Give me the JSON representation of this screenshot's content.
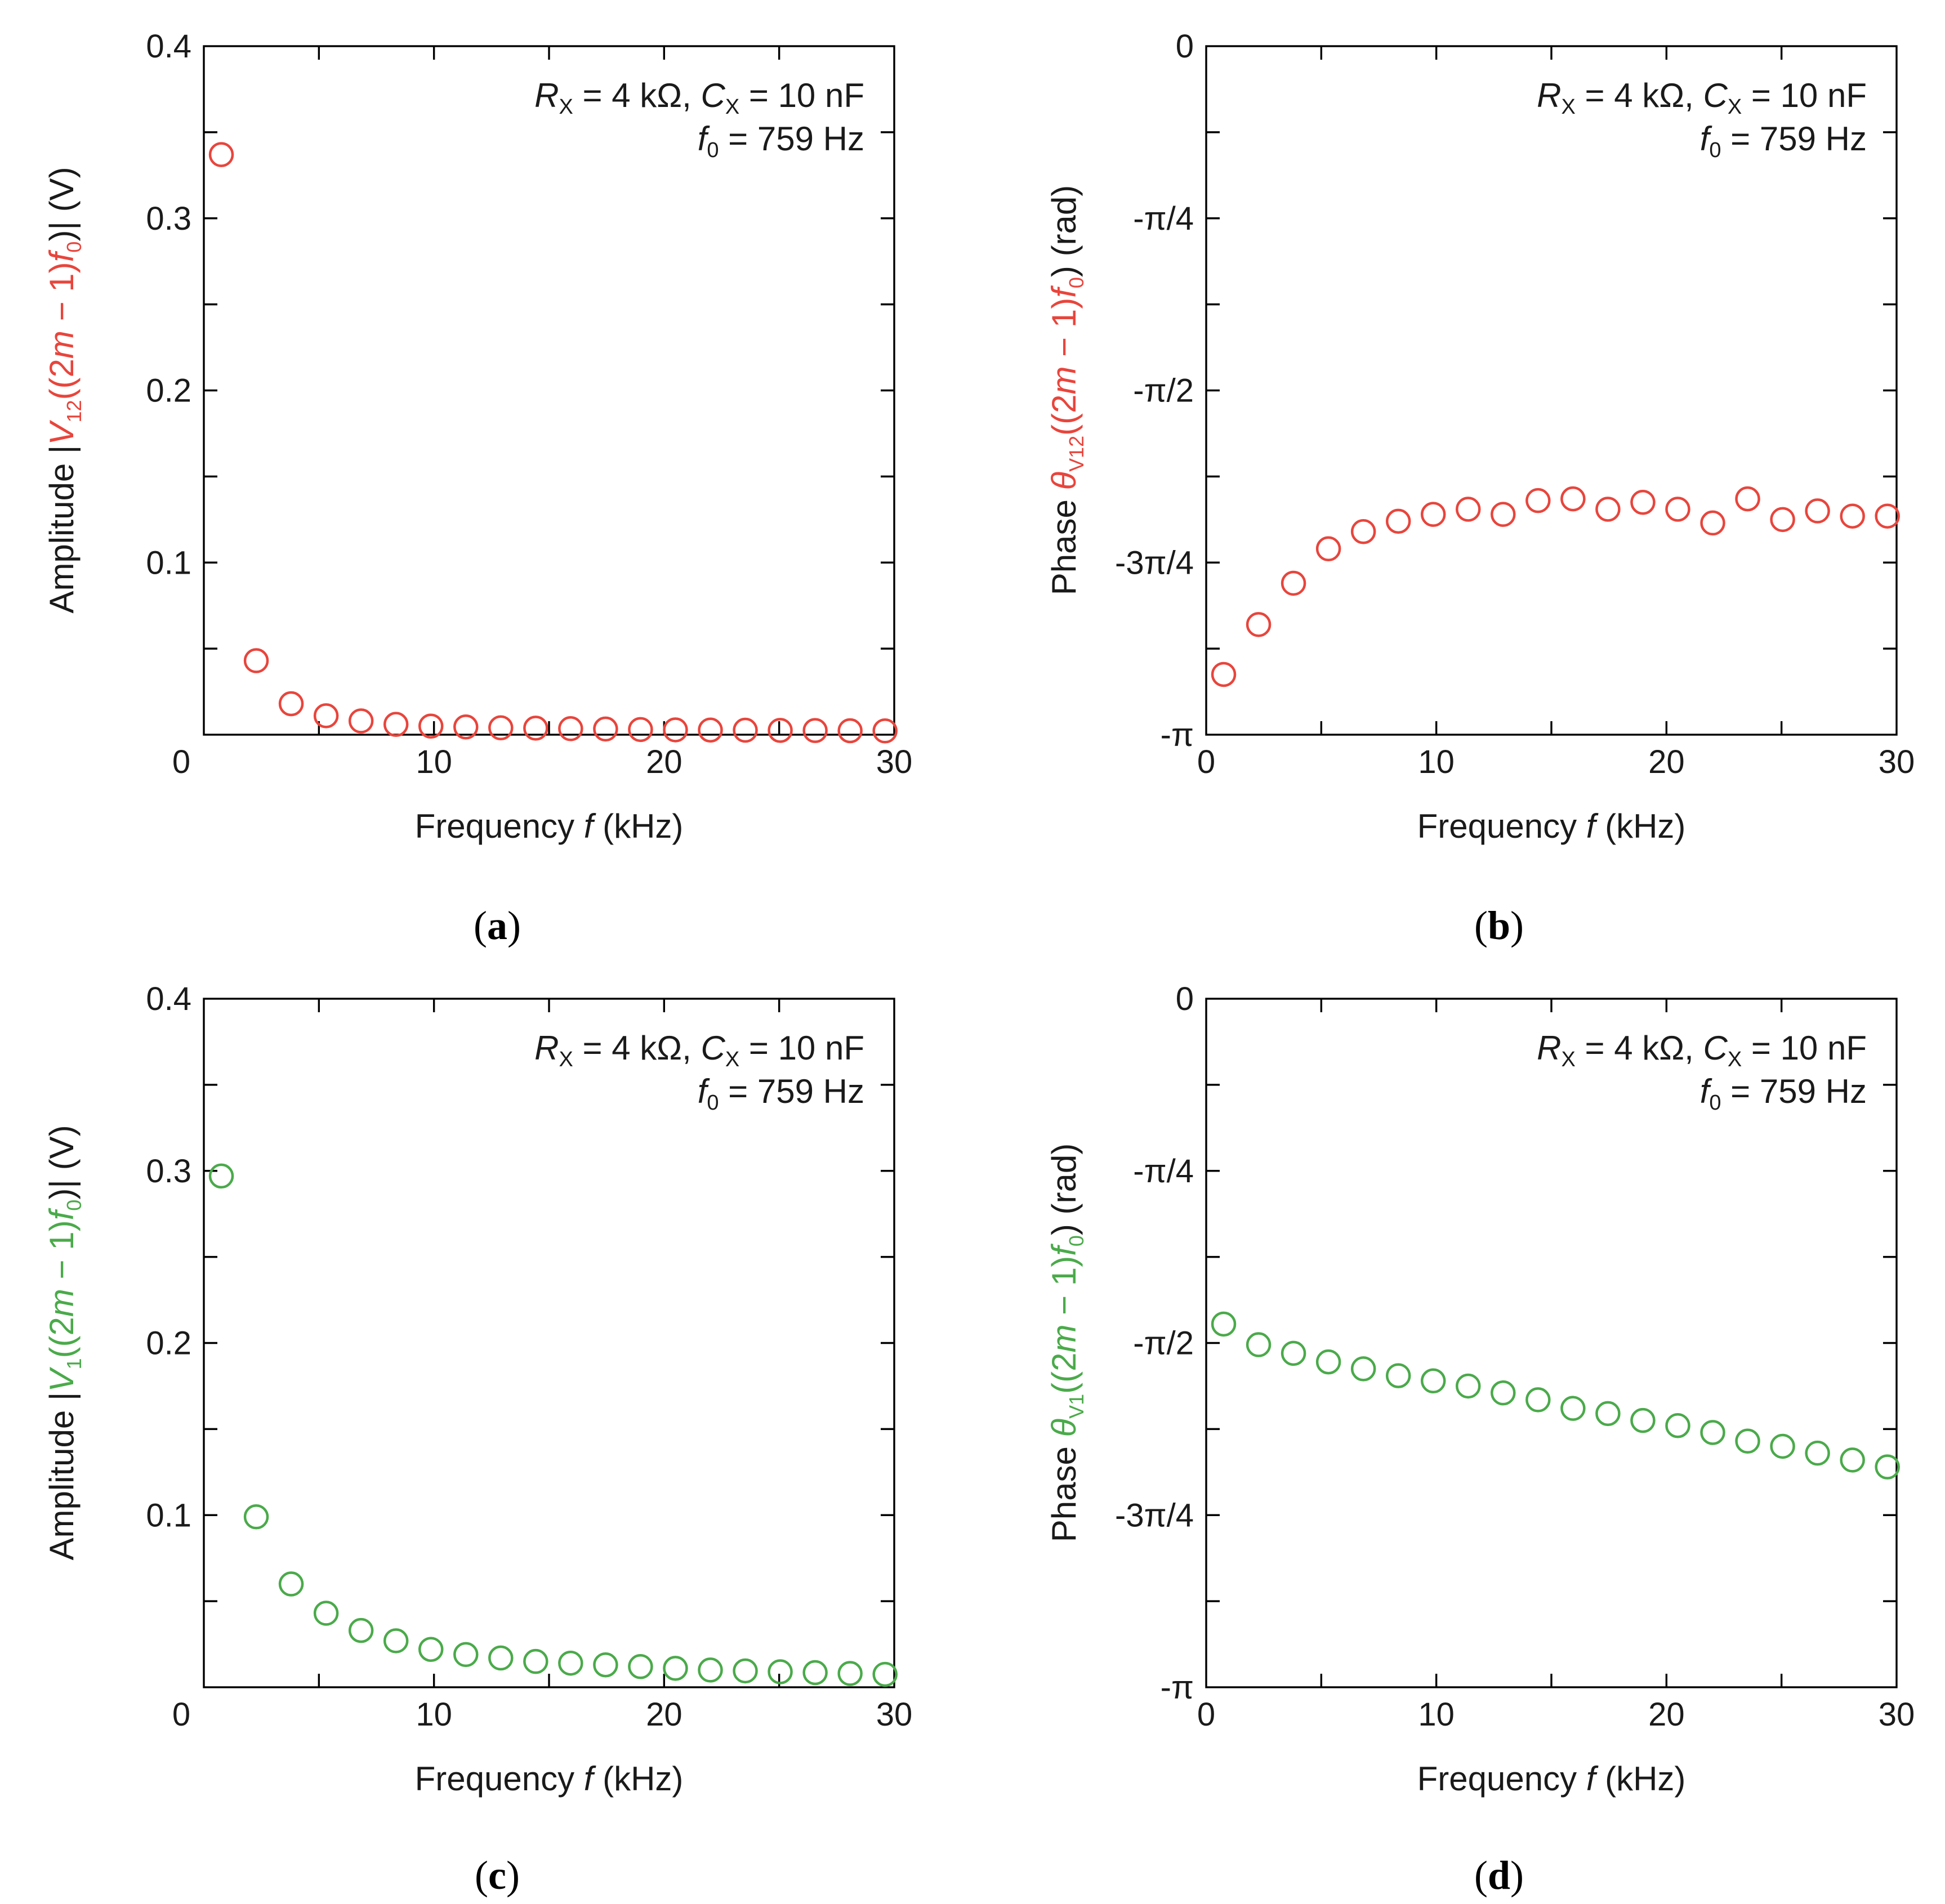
{
  "chart_data": [
    {
      "id": "a",
      "type": "scatter",
      "panel_label": "a",
      "ylabel": {
        "prefix": "Amplitude |",
        "dot_var": "V",
        "sub": "12",
        "arg": "((2",
        "m": "m",
        "arg2": " − 1)",
        "f": "f",
        "f_sub": "0",
        "close": ")| (V)"
      },
      "xlabel": {
        "text1": "Frequency ",
        "f": "f",
        "text2": " (kHz)"
      },
      "annotation": {
        "line1": {
          "R": "R",
          "R_sub": "X",
          "R_val": " = 4 kΩ, ",
          "C": "C",
          "C_sub": "X",
          "C_val": " = 10 nF"
        },
        "line2": {
          "f": "f",
          "f_sub": "0",
          "f_val": " = 759 Hz"
        }
      },
      "xlim": [
        0,
        30
      ],
      "ylim": [
        0,
        0.4
      ],
      "xticks": [
        0,
        10,
        20,
        30
      ],
      "xtick_labels": [
        "0",
        "10",
        "20",
        "30"
      ],
      "yticks": [
        0,
        0.1,
        0.2,
        0.3,
        0.4
      ],
      "ytick_labels": [
        "",
        "0.1",
        "0.2",
        "0.3",
        "0.4"
      ],
      "series_color": "#e8453c",
      "x": [
        0.759,
        2.277,
        3.795,
        5.313,
        6.831,
        8.349,
        9.867,
        11.385,
        12.903,
        14.421,
        15.939,
        17.457,
        18.975,
        20.493,
        22.011,
        23.529,
        25.047,
        26.565,
        28.083,
        29.601
      ],
      "y": [
        0.337,
        0.043,
        0.018,
        0.011,
        0.008,
        0.006,
        0.005,
        0.0045,
        0.004,
        0.0038,
        0.0035,
        0.0033,
        0.003,
        0.0028,
        0.0027,
        0.0026,
        0.0025,
        0.0024,
        0.0023,
        0.0022
      ]
    },
    {
      "id": "b",
      "type": "scatter",
      "panel_label": "b",
      "ylabel": {
        "prefix": "Phase ",
        "theta": "θ",
        "sub": "V12",
        "arg": "((2",
        "m": "m",
        "arg2": " − 1)",
        "f": "f",
        "f_sub": "0",
        "close": ") (rad)"
      },
      "xlabel": {
        "text1": "Frequency ",
        "f": "f",
        "text2": " (kHz)"
      },
      "annotation": {
        "line1": {
          "R": "R",
          "R_sub": "X",
          "R_val": " = 4 kΩ, ",
          "C": "C",
          "C_sub": "X",
          "C_val": " = 10 nF"
        },
        "line2": {
          "f": "f",
          "f_sub": "0",
          "f_val": " = 759 Hz"
        }
      },
      "xlim": [
        0,
        30
      ],
      "ylim": [
        -4,
        0
      ],
      "yunit": "π/4",
      "xticks": [
        0,
        10,
        20,
        30
      ],
      "xtick_labels": [
        "0",
        "10",
        "20",
        "30"
      ],
      "yticks": [
        -4,
        -3,
        -2,
        -1,
        0
      ],
      "ytick_labels": [
        "-π",
        "-3π/4",
        "-π/2",
        "-π/4",
        "0"
      ],
      "series_color": "#e8453c",
      "x": [
        0.759,
        2.277,
        3.795,
        5.313,
        6.831,
        8.349,
        9.867,
        11.385,
        12.903,
        14.421,
        15.939,
        17.457,
        18.975,
        20.493,
        22.011,
        23.529,
        25.047,
        26.565,
        28.083,
        29.601
      ],
      "y": [
        -3.65,
        -3.36,
        -3.12,
        -2.92,
        -2.82,
        -2.76,
        -2.72,
        -2.69,
        -2.72,
        -2.64,
        -2.63,
        -2.69,
        -2.65,
        -2.69,
        -2.77,
        -2.63,
        -2.75,
        -2.7,
        -2.73,
        -2.73
      ]
    },
    {
      "id": "c",
      "type": "scatter",
      "panel_label": "c",
      "ylabel": {
        "prefix": "Amplitude |",
        "dot_var": "V",
        "sub": "1",
        "arg": "((2",
        "m": "m",
        "arg2": " − 1)",
        "f": "f",
        "f_sub": "0",
        "close": ")| (V)"
      },
      "xlabel": {
        "text1": "Frequency ",
        "f": "f",
        "text2": " (kHz)"
      },
      "annotation": {
        "line1": {
          "R": "R",
          "R_sub": "X",
          "R_val": " = 4 kΩ, ",
          "C": "C",
          "C_sub": "X",
          "C_val": " = 10 nF"
        },
        "line2": {
          "f": "f",
          "f_sub": "0",
          "f_val": " = 759 Hz"
        }
      },
      "xlim": [
        0,
        30
      ],
      "ylim": [
        0,
        0.4
      ],
      "xticks": [
        0,
        10,
        20,
        30
      ],
      "xtick_labels": [
        "0",
        "10",
        "20",
        "30"
      ],
      "yticks": [
        0,
        0.1,
        0.2,
        0.3,
        0.4
      ],
      "ytick_labels": [
        "",
        "0.1",
        "0.2",
        "0.3",
        "0.4"
      ],
      "series_color": "#4aaa4a",
      "x": [
        0.759,
        2.277,
        3.795,
        5.313,
        6.831,
        8.349,
        9.867,
        11.385,
        12.903,
        14.421,
        15.939,
        17.457,
        18.975,
        20.493,
        22.011,
        23.529,
        25.047,
        26.565,
        28.083,
        29.601
      ],
      "y": [
        0.297,
        0.099,
        0.06,
        0.043,
        0.033,
        0.027,
        0.022,
        0.019,
        0.017,
        0.015,
        0.014,
        0.013,
        0.012,
        0.011,
        0.01,
        0.0095,
        0.009,
        0.0085,
        0.008,
        0.0075
      ]
    },
    {
      "id": "d",
      "type": "scatter",
      "panel_label": "d",
      "ylabel": {
        "prefix": "Phase ",
        "theta": "θ",
        "sub": "V1",
        "arg": "((2",
        "m": "m",
        "arg2": " − 1)",
        "f": "f",
        "f_sub": "0",
        "close": ") (rad)"
      },
      "xlabel": {
        "text1": "Frequency ",
        "f": "f",
        "text2": " (kHz)"
      },
      "annotation": {
        "line1": {
          "R": "R",
          "R_sub": "X",
          "R_val": " = 4 kΩ, ",
          "C": "C",
          "C_sub": "X",
          "C_val": " = 10 nF"
        },
        "line2": {
          "f": "f",
          "f_sub": "0",
          "f_val": " = 759 Hz"
        }
      },
      "xlim": [
        0,
        30
      ],
      "ylim": [
        -4,
        0
      ],
      "yunit": "π/4",
      "xticks": [
        0,
        10,
        20,
        30
      ],
      "xtick_labels": [
        "0",
        "10",
        "20",
        "30"
      ],
      "yticks": [
        -4,
        -3,
        -2,
        -1,
        0
      ],
      "ytick_labels": [
        "-π",
        "-3π/4",
        "-π/2",
        "-π/4",
        "0"
      ],
      "series_color": "#4aaa4a",
      "x": [
        0.759,
        2.277,
        3.795,
        5.313,
        6.831,
        8.349,
        9.867,
        11.385,
        12.903,
        14.421,
        15.939,
        17.457,
        18.975,
        20.493,
        22.011,
        23.529,
        25.047,
        26.565,
        28.083,
        29.601
      ],
      "y": [
        -1.89,
        -2.01,
        -2.06,
        -2.11,
        -2.15,
        -2.19,
        -2.22,
        -2.25,
        -2.29,
        -2.33,
        -2.38,
        -2.41,
        -2.45,
        -2.48,
        -2.52,
        -2.57,
        -2.6,
        -2.64,
        -2.68,
        -2.72
      ]
    }
  ]
}
